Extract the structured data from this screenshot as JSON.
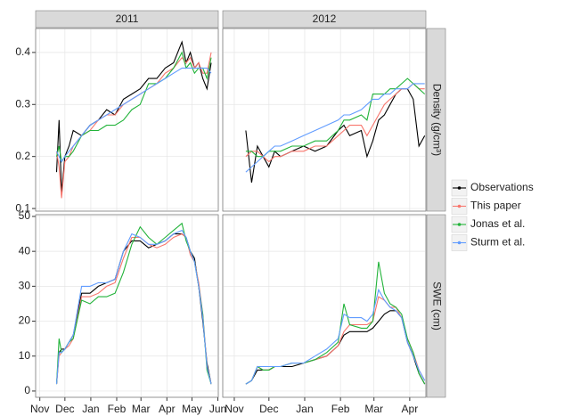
{
  "chart_data": {
    "type": "line",
    "columns": [
      {
        "label": "2011",
        "x": [
          20,
          23,
          26,
          30,
          35,
          40,
          50,
          60,
          70,
          80,
          90,
          100,
          110,
          120,
          130,
          140,
          150,
          160,
          170,
          175,
          180,
          185,
          190,
          195,
          200,
          205
        ],
        "xlim": [
          -5,
          213.5
        ],
        "xticks": [
          {
            "value": 0,
            "label": "Nov"
          },
          {
            "value": 30,
            "label": "Dec"
          },
          {
            "value": 61,
            "label": "Jan"
          },
          {
            "value": 92,
            "label": "Feb"
          },
          {
            "value": 121,
            "label": "Mar"
          },
          {
            "value": 152,
            "label": "Apr"
          },
          {
            "value": 182,
            "label": "May"
          },
          {
            "value": 213,
            "label": "Jun"
          }
        ]
      },
      {
        "label": "2012",
        "x": [
          10,
          15,
          20,
          25,
          30,
          35,
          40,
          50,
          60,
          70,
          80,
          90,
          95,
          100,
          110,
          115,
          120,
          125,
          130,
          135,
          140,
          145,
          150,
          155,
          160,
          165
        ],
        "xlim": [
          -10,
          166
        ],
        "xticks": [
          {
            "value": 0,
            "label": "Nov"
          },
          {
            "value": 30,
            "label": "Dec"
          },
          {
            "value": 61,
            "label": "Jan"
          },
          {
            "value": 92,
            "label": "Feb"
          },
          {
            "value": 121,
            "label": "Mar"
          },
          {
            "value": 152,
            "label": "Apr"
          }
        ]
      }
    ],
    "rows": [
      {
        "label": "Density (g/cm³)",
        "ylim": [
          0.095,
          0.446
        ],
        "yticks": [
          0.1,
          0.2,
          0.3,
          0.4
        ]
      },
      {
        "label": "SWE (cm)",
        "ylim": [
          -1.8,
          50.5
        ],
        "yticks": [
          0,
          10,
          20,
          30,
          40,
          50
        ]
      }
    ],
    "grid": true,
    "legend": "right",
    "series": [
      {
        "name": "Observations",
        "color": "#000000",
        "values": [
          [
            [
              0.17,
              0.27,
              0.13,
              0.2,
              0.22,
              0.25,
              0.24,
              0.26,
              0.27,
              0.29,
              0.28,
              0.31,
              0.32,
              0.33,
              0.35,
              0.35,
              0.37,
              0.38,
              0.42,
              0.38,
              0.4,
              0.37,
              0.38,
              0.35,
              0.33,
              0.38
            ],
            [
              0.25,
              0.15,
              0.22,
              0.2,
              0.18,
              0.21,
              0.2,
              0.21,
              0.22,
              0.21,
              0.22,
              0.25,
              0.26,
              0.24,
              0.25,
              0.2,
              0.23,
              0.27,
              0.28,
              0.3,
              0.32,
              0.33,
              0.33,
              0.31,
              0.22,
              0.24
            ]
          ],
          [
            [
              2,
              11,
              12,
              12,
              14,
              16,
              28,
              28,
              30,
              31,
              32,
              40,
              43,
              43,
              41,
              42,
              43,
              45,
              45,
              44,
              40,
              38,
              30,
              20,
              8,
              2
            ],
            [
              2,
              3,
              6,
              6,
              6,
              7,
              7,
              7,
              8,
              9,
              10,
              13,
              16,
              17,
              17,
              17,
              18,
              20,
              22,
              23,
              23,
              21,
              14,
              10,
              5,
              2
            ]
          ]
        ]
      },
      {
        "name": "This paper",
        "color": "#f8766d",
        "values": [
          [
            [
              0.21,
              0.18,
              0.12,
              0.19,
              0.2,
              0.22,
              0.24,
              0.25,
              0.27,
              0.28,
              0.28,
              0.3,
              0.31,
              0.32,
              0.33,
              0.34,
              0.36,
              0.37,
              0.39,
              0.38,
              0.39,
              0.37,
              0.38,
              0.36,
              0.36,
              0.4
            ],
            [
              0.2,
              0.21,
              0.21,
              0.2,
              0.19,
              0.2,
              0.2,
              0.21,
              0.21,
              0.22,
              0.22,
              0.24,
              0.25,
              0.26,
              0.26,
              0.24,
              0.26,
              0.28,
              0.3,
              0.31,
              0.32,
              0.33,
              0.33,
              0.34,
              0.33,
              0.33
            ]
          ],
          [
            [
              2,
              10,
              11,
              12,
              13,
              15,
              27,
              27,
              28,
              30,
              31,
              38,
              44,
              44,
              42,
              41,
              42,
              44,
              45,
              44,
              39,
              37,
              31,
              22,
              7,
              2
            ],
            [
              2,
              3,
              7,
              6,
              6,
              7,
              7,
              8,
              8,
              9,
              10,
              13,
              17,
              19,
              19,
              19,
              20,
              27,
              26,
              24,
              24,
              21,
              15,
              11,
              6,
              3
            ]
          ]
        ]
      },
      {
        "name": "Jonas et al.",
        "color": "#22b33a",
        "values": [
          [
            [
              0.2,
              0.22,
              0.19,
              0.2,
              0.2,
              0.21,
              0.24,
              0.25,
              0.25,
              0.26,
              0.26,
              0.27,
              0.29,
              0.3,
              0.34,
              0.34,
              0.35,
              0.37,
              0.4,
              0.37,
              0.38,
              0.36,
              0.37,
              0.37,
              0.35,
              0.39
            ],
            [
              0.21,
              0.21,
              0.2,
              0.2,
              0.21,
              0.21,
              0.21,
              0.22,
              0.22,
              0.23,
              0.23,
              0.25,
              0.27,
              0.27,
              0.28,
              0.27,
              0.32,
              0.32,
              0.32,
              0.33,
              0.33,
              0.34,
              0.35,
              0.34,
              0.33,
              0.32
            ]
          ],
          [
            [
              2,
              15,
              11,
              12,
              14,
              15,
              26,
              25,
              27,
              27,
              28,
              34,
              42,
              47,
              44,
              42,
              44,
              46,
              48,
              43,
              40,
              37,
              30,
              22,
              6,
              2
            ],
            [
              2,
              3,
              7,
              6,
              6,
              7,
              7,
              8,
              8,
              9,
              11,
              14,
              25,
              19,
              18,
              18,
              20,
              37,
              28,
              25,
              24,
              22,
              15,
              11,
              5,
              2
            ]
          ]
        ]
      },
      {
        "name": "Sturm et al.",
        "color": "#619cff",
        "values": [
          [
            [
              0.21,
              0.2,
              0.19,
              0.2,
              0.21,
              0.22,
              0.24,
              0.26,
              0.27,
              0.28,
              0.29,
              0.3,
              0.31,
              0.32,
              0.33,
              0.34,
              0.35,
              0.36,
              0.37,
              0.37,
              0.37,
              0.37,
              0.37,
              0.37,
              0.37,
              0.36
            ],
            [
              0.17,
              0.18,
              0.19,
              0.2,
              0.21,
              0.22,
              0.22,
              0.23,
              0.24,
              0.25,
              0.26,
              0.27,
              0.28,
              0.28,
              0.29,
              0.3,
              0.31,
              0.31,
              0.32,
              0.32,
              0.33,
              0.33,
              0.33,
              0.34,
              0.34,
              0.34
            ]
          ],
          [
            [
              2,
              11,
              11,
              12,
              14,
              16,
              30,
              30,
              31,
              31,
              32,
              40,
              45,
              44,
              42,
              42,
              43,
              45,
              46,
              44,
              40,
              37,
              30,
              21,
              7,
              2
            ],
            [
              2,
              3,
              7,
              7,
              7,
              7,
              7,
              8,
              8,
              10,
              12,
              15,
              22,
              21,
              21,
              20,
              22,
              29,
              26,
              24,
              23,
              21,
              14,
              10,
              6,
              3
            ]
          ]
        ]
      }
    ]
  }
}
